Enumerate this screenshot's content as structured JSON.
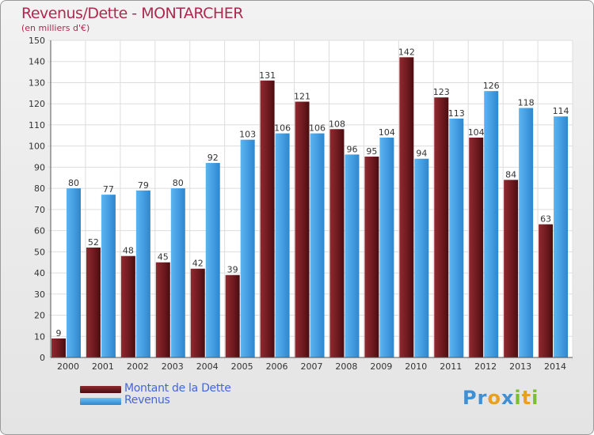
{
  "title": "Revenus/Dette - MONTARCHER",
  "subtitle": "(en milliers d'€)",
  "logo": {
    "text": "Proxiti",
    "letters": [
      {
        "ch": "P",
        "color": "#3d8fd6"
      },
      {
        "ch": "r",
        "color": "#3d8fd6"
      },
      {
        "ch": "o",
        "color": "#e8a020"
      },
      {
        "ch": "x",
        "color": "#3d8fd6"
      },
      {
        "ch": "i",
        "color": "#7cbf2e"
      },
      {
        "ch": "t",
        "color": "#e8a020"
      },
      {
        "ch": "i",
        "color": "#7cbf2e"
      }
    ]
  },
  "chart_data": {
    "type": "bar",
    "title": "Revenus/Dette - MONTARCHER",
    "subtitle": "(en milliers d'€)",
    "categories": [
      "2000",
      "2001",
      "2002",
      "2003",
      "2004",
      "2005",
      "2006",
      "2007",
      "2008",
      "2009",
      "2010",
      "2011",
      "2012",
      "2013",
      "2014"
    ],
    "series": [
      {
        "name": "Montant de la Dette",
        "color": "#7a1f24",
        "values": [
          9,
          52,
          48,
          45,
          42,
          39,
          131,
          121,
          108,
          95,
          142,
          123,
          104,
          84,
          63
        ]
      },
      {
        "name": "Revenus",
        "color": "#4aa3e6",
        "values": [
          80,
          77,
          79,
          80,
          92,
          103,
          106,
          106,
          96,
          104,
          94,
          113,
          126,
          118,
          114
        ]
      }
    ],
    "ylim": [
      0,
      150
    ],
    "yticks": [
      0,
      10,
      20,
      30,
      40,
      50,
      60,
      70,
      80,
      90,
      100,
      110,
      120,
      130,
      140,
      150
    ],
    "grid": true,
    "legend_position": "bottom-left"
  }
}
